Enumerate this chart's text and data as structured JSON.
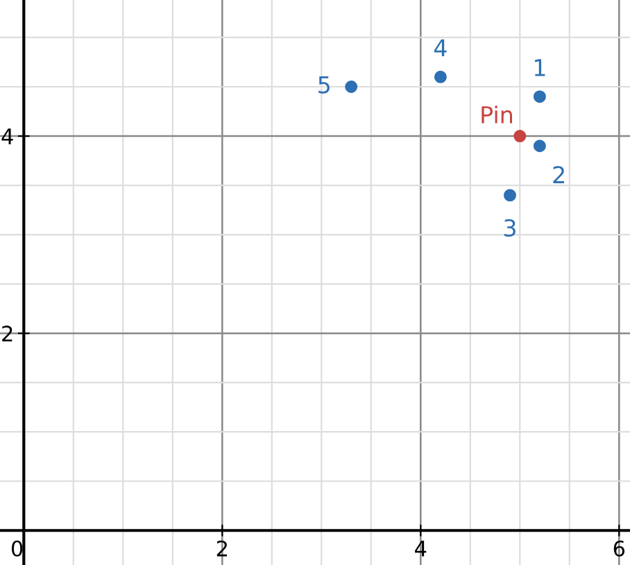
{
  "chart_data": {
    "type": "scatter",
    "series": [
      {
        "color": "#2d70b3",
        "x": [
          5.2,
          5.2,
          4.9,
          4.2,
          3.3
        ],
        "values": [
          4.4,
          3.9,
          3.4,
          4.6,
          4.5
        ]
      },
      {
        "name": "Pin",
        "color": "#c74440",
        "x": [
          5
        ],
        "values": [
          4
        ]
      }
    ],
    "xlim": [
      -0.24,
      6.11
    ],
    "ylim": [
      -0.35,
      5.38
    ],
    "xticks": [
      0,
      2,
      4,
      6
    ],
    "yticks": [
      2,
      4
    ],
    "annotations": [
      {
        "text": "1",
        "x": 5.2,
        "y": 4.4
      },
      {
        "text": "2",
        "x": 5.2,
        "y": 3.9
      },
      {
        "text": "3",
        "x": 4.9,
        "y": 3.4
      },
      {
        "text": "4",
        "x": 4.2,
        "y": 4.6
      },
      {
        "text": "5",
        "x": 3.3,
        "y": 4.5
      }
    ],
    "grid": true,
    "marker": "circle"
  }
}
